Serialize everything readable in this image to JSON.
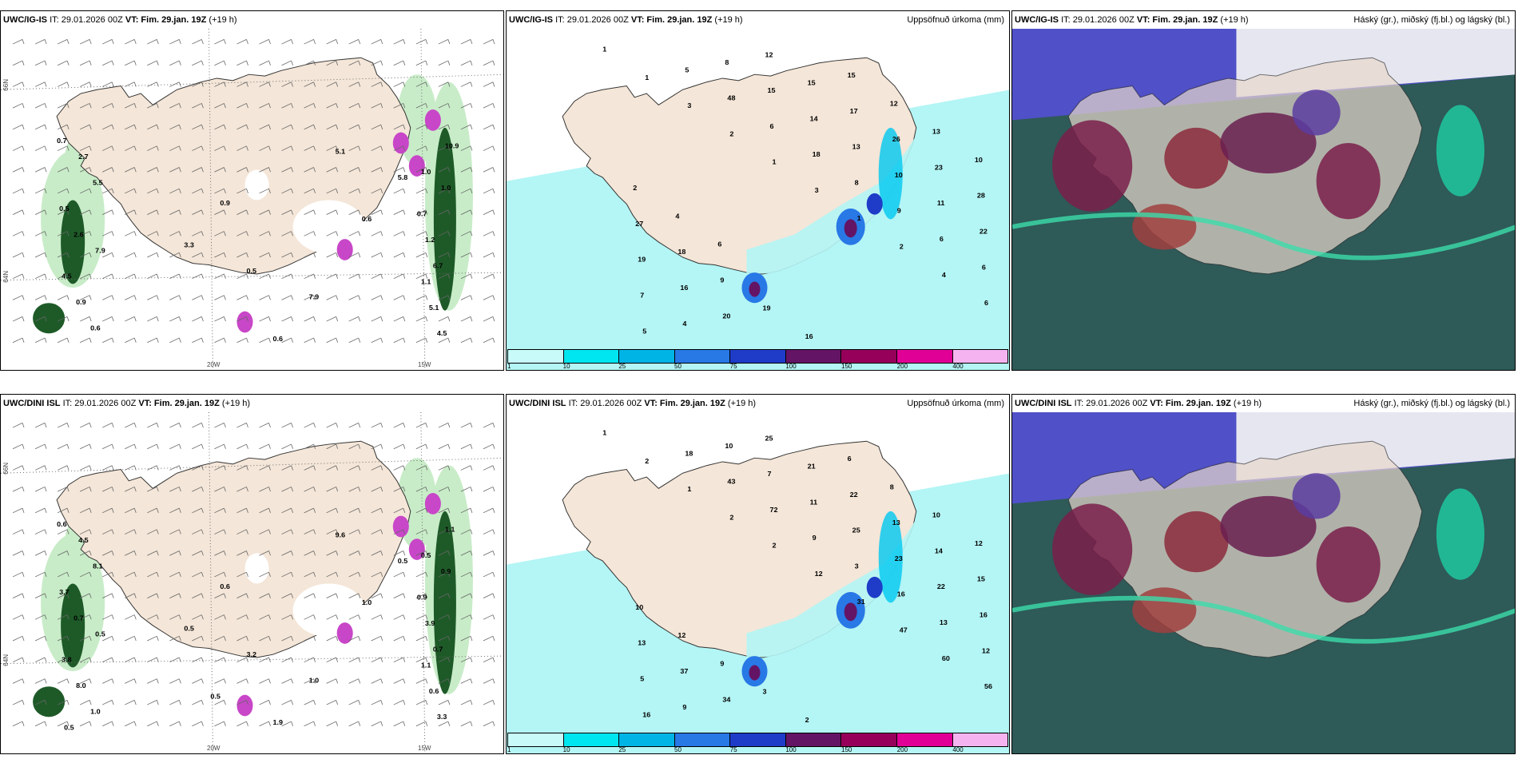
{
  "panels": {
    "ig_wind": {
      "model": "UWC/IG-IS",
      "it": "IT: 29.01.2026 00Z",
      "vt": "VT: Fim. 29.jan. 19Z",
      "lead": "(+19 h)"
    },
    "ig_precip": {
      "model": "UWC/IG-IS",
      "it": "IT: 29.01.2026 00Z",
      "vt": "VT: Fim. 29.jan. 19Z",
      "lead": "(+19 h)",
      "product": "Uppsöfnuð úrkoma (mm)"
    },
    "ig_cloud": {
      "model": "UWC/IG-IS",
      "it": "IT: 29.01.2026 00Z",
      "vt": "VT: Fim. 29.jan. 19Z",
      "lead": "(+19 h)",
      "product": "Háský (gr.), miðský (fj.bl.) og lágský (bl.)"
    },
    "dini_wind": {
      "model": "UWC/DINI ISL",
      "it": "IT: 29.01.2026 00Z",
      "vt": "VT: Fim. 29.jan. 19Z",
      "lead": "(+19 h)"
    },
    "dini_precip": {
      "model": "UWC/DINI ISL",
      "it": "IT: 29.01.2026 00Z",
      "vt": "VT: Fim. 29.jan. 19Z",
      "lead": "(+19 h)",
      "product": "Uppsöfnuð úrkoma (mm)"
    },
    "dini_cloud": {
      "model": "UWC/DINI ISL",
      "it": "IT: 29.01.2026 00Z",
      "vt": "VT: Fim. 29.jan. 19Z",
      "lead": "(+19 h)",
      "product": "Háský (gr.), miðský (fj.bl.) og lágský (bl.)"
    }
  },
  "coords": {
    "lat66": "66N",
    "lat64": "64N",
    "lon20": "20W",
    "lon15": "15W"
  },
  "legend": {
    "ticks": [
      "1",
      "10",
      "25",
      "50",
      "75",
      "100",
      "150",
      "200",
      "400"
    ],
    "colors": [
      "#c8fafa",
      "#00e6f0",
      "#00b4e6",
      "#2878e6",
      "#1e3cc8",
      "#641464",
      "#96005a",
      "#e10096",
      "#f5b4f0"
    ]
  },
  "colors": {
    "land": "#f4e6d8",
    "sea_precip": "#b4f5f5",
    "green_light": "#c8ecc8",
    "green_dark": "#1e5a28",
    "magenta": "#c846c8"
  },
  "wind_labels_ig": [
    {
      "t": "0.7"
    },
    {
      "t": "1.0"
    },
    {
      "t": "0.9"
    },
    {
      "t": "2.6"
    },
    {
      "t": "6.7"
    },
    {
      "t": "7.9"
    },
    {
      "t": "0.6"
    },
    {
      "t": "10.9"
    },
    {
      "t": "5.8"
    },
    {
      "t": "0.5"
    },
    {
      "t": "1.2"
    },
    {
      "t": "0.5"
    },
    {
      "t": "0.9"
    },
    {
      "t": "4.5"
    },
    {
      "t": "5.1"
    },
    {
      "t": "5.5"
    },
    {
      "t": "0.7"
    },
    {
      "t": "3.3"
    },
    {
      "t": "4.5"
    },
    {
      "t": "5.1"
    },
    {
      "t": "0.6"
    },
    {
      "t": "2.7"
    },
    {
      "t": "1.0"
    },
    {
      "t": "0.6"
    },
    {
      "t": "7.9"
    },
    {
      "t": "1.1"
    }
  ],
  "wind_labels_dini": [
    {
      "t": "0.6"
    },
    {
      "t": "0.5"
    },
    {
      "t": "0.6"
    },
    {
      "t": "0.7"
    },
    {
      "t": "0.7"
    },
    {
      "t": "1.0"
    },
    {
      "t": "1.0"
    },
    {
      "t": "1.1"
    },
    {
      "t": "0.5"
    },
    {
      "t": "3.7"
    },
    {
      "t": "3.9"
    },
    {
      "t": "3.2"
    },
    {
      "t": "8.0"
    },
    {
      "t": "3.3"
    },
    {
      "t": "9.6"
    },
    {
      "t": "8.1"
    },
    {
      "t": "0.9"
    },
    {
      "t": "0.5"
    },
    {
      "t": "3.8"
    },
    {
      "t": "0.6"
    },
    {
      "t": "1.9"
    },
    {
      "t": "4.5"
    },
    {
      "t": "0.9"
    },
    {
      "t": "1.0"
    },
    {
      "t": "0.5"
    },
    {
      "t": "1.1"
    },
    {
      "t": "0.5"
    },
    {
      "t": "0.5"
    }
  ],
  "precip_labels_ig": [
    {
      "t": "1"
    },
    {
      "t": "1"
    },
    {
      "t": "3"
    },
    {
      "t": "2"
    },
    {
      "t": "1"
    },
    {
      "t": "3"
    },
    {
      "t": "1"
    },
    {
      "t": "2"
    },
    {
      "t": "4"
    },
    {
      "t": "6"
    },
    {
      "t": "5"
    },
    {
      "t": "5"
    },
    {
      "t": "48"
    },
    {
      "t": "6"
    },
    {
      "t": "18"
    },
    {
      "t": "8"
    },
    {
      "t": "9"
    },
    {
      "t": "6"
    },
    {
      "t": "6"
    },
    {
      "t": "7"
    },
    {
      "t": "4"
    },
    {
      "t": "8"
    },
    {
      "t": "15"
    },
    {
      "t": "14"
    },
    {
      "t": "13"
    },
    {
      "t": "10"
    },
    {
      "t": "11"
    },
    {
      "t": "22"
    },
    {
      "t": "19"
    },
    {
      "t": "16"
    },
    {
      "t": "20"
    },
    {
      "t": "12"
    },
    {
      "t": "15"
    },
    {
      "t": "17"
    },
    {
      "t": "26"
    },
    {
      "t": "23"
    },
    {
      "t": "28"
    },
    {
      "t": "27"
    },
    {
      "t": "18"
    },
    {
      "t": "9"
    },
    {
      "t": "19"
    },
    {
      "t": "16"
    },
    {
      "t": "15"
    },
    {
      "t": "12"
    },
    {
      "t": "13"
    },
    {
      "t": "10"
    },
    {
      "t": "2"
    },
    {
      "t": "4"
    },
    {
      "t": "6"
    }
  ],
  "precip_labels_dini": [
    {
      "t": "1"
    },
    {
      "t": "2"
    },
    {
      "t": "1"
    },
    {
      "t": "2"
    },
    {
      "t": "2"
    },
    {
      "t": "12"
    },
    {
      "t": "31"
    },
    {
      "t": "47"
    },
    {
      "t": "60"
    },
    {
      "t": "56"
    },
    {
      "t": "16"
    },
    {
      "t": "18"
    },
    {
      "t": "43"
    },
    {
      "t": "72"
    },
    {
      "t": "9"
    },
    {
      "t": "3"
    },
    {
      "t": "16"
    },
    {
      "t": "13"
    },
    {
      "t": "12"
    },
    {
      "t": "5"
    },
    {
      "t": "9"
    },
    {
      "t": "10"
    },
    {
      "t": "7"
    },
    {
      "t": "11"
    },
    {
      "t": "25"
    },
    {
      "t": "23"
    },
    {
      "t": "22"
    },
    {
      "t": "16"
    },
    {
      "t": "13"
    },
    {
      "t": "37"
    },
    {
      "t": "34"
    },
    {
      "t": "25"
    },
    {
      "t": "21"
    },
    {
      "t": "22"
    },
    {
      "t": "13"
    },
    {
      "t": "14"
    },
    {
      "t": "15"
    },
    {
      "t": "10"
    },
    {
      "t": "12"
    },
    {
      "t": "9"
    },
    {
      "t": "3"
    },
    {
      "t": "2"
    },
    {
      "t": "6"
    },
    {
      "t": "8"
    },
    {
      "t": "10"
    },
    {
      "t": "12"
    }
  ]
}
